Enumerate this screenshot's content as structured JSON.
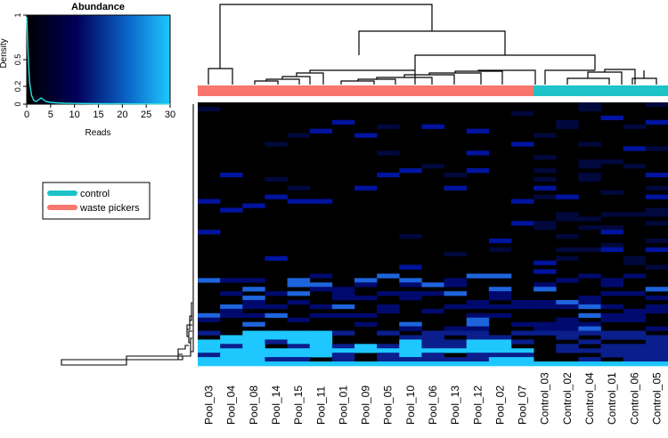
{
  "chart_data": [
    {
      "type": "heatmap",
      "title": "",
      "columns": [
        "Pool_03",
        "Pool_04",
        "Pool_08",
        "Pool_14",
        "Pool_15",
        "Pool_11",
        "Pool_01",
        "Pool_09",
        "Pool_05",
        "Pool_10",
        "Pool_06",
        "Pool_13",
        "Pool_12",
        "Pool_02",
        "Pool_07",
        "Control_03",
        "Control_02",
        "Control_04",
        "Control_01",
        "Control_06",
        "Control_05"
      ],
      "groups": [
        "waste pickers",
        "waste pickers",
        "waste pickers",
        "waste pickers",
        "waste pickers",
        "waste pickers",
        "waste pickers",
        "waste pickers",
        "waste pickers",
        "waste pickers",
        "waste pickers",
        "waste pickers",
        "waste pickers",
        "waste pickers",
        "waste pickers",
        "control",
        "control",
        "control",
        "control",
        "control",
        "control"
      ],
      "value_range": [
        0,
        30
      ],
      "color_low": "#000000",
      "color_mid": "#00003c",
      "color_high": "#1ec8ff",
      "bright_rows": [
        [
          2,
          3,
          4,
          5
        ],
        [
          1,
          2,
          3,
          4,
          5
        ],
        [
          0,
          1,
          2,
          4,
          5,
          9,
          12,
          13
        ],
        [
          0,
          2,
          5,
          7,
          9,
          12,
          13
        ],
        [
          0,
          1,
          2,
          3,
          4,
          5,
          6,
          7,
          8,
          9,
          10,
          11,
          12,
          13,
          14
        ],
        [
          1,
          2,
          3,
          4,
          5,
          9
        ],
        [
          0,
          1,
          2,
          13,
          14
        ],
        [
          0,
          1,
          2,
          3,
          4,
          5,
          6,
          7,
          8,
          9,
          10,
          11,
          12,
          13,
          14,
          15,
          16,
          17,
          18,
          19,
          20
        ]
      ],
      "dendrogram": "hierarchical clustering of samples (columns) and features (rows)"
    },
    {
      "type": "line",
      "title": "Abundance",
      "xlabel": "Reads",
      "ylabel": "Density",
      "xlim": [
        0,
        30
      ],
      "ylim": [
        0,
        1
      ],
      "x_ticks": [
        "0",
        "5",
        "10",
        "15",
        "20",
        "25",
        "30"
      ],
      "y_ticks": [
        "0",
        "0.2",
        "0.5",
        "1"
      ],
      "series": [
        {
          "name": "density",
          "x": [
            0,
            0.3,
            0.6,
            1,
            1.5,
            2,
            2.5,
            3,
            3.5,
            4,
            5,
            6,
            8,
            10,
            15,
            20,
            25,
            30
          ],
          "y": [
            0.98,
            0.55,
            0.25,
            0.1,
            0.04,
            0.03,
            0.05,
            0.07,
            0.05,
            0.03,
            0.02,
            0.015,
            0.01,
            0.008,
            0.005,
            0.004,
            0.003,
            0.002
          ]
        }
      ]
    }
  ],
  "legend": {
    "items": [
      {
        "label": "control",
        "color": "#1dc3c7"
      },
      {
        "label": "waste pickers",
        "color": "#f8766d"
      }
    ]
  }
}
